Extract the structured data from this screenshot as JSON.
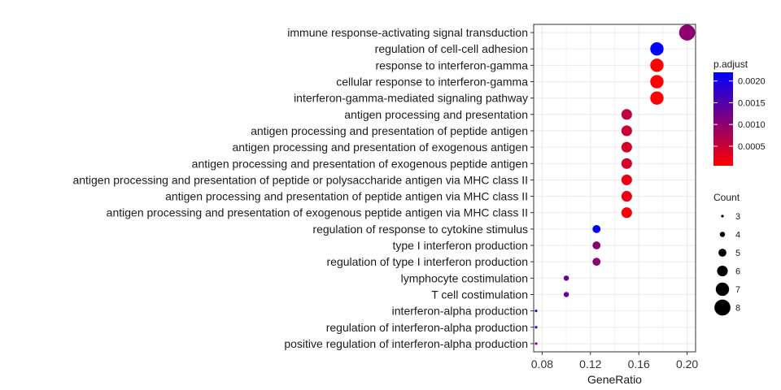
{
  "chart_data": {
    "type": "scatter",
    "xlabel": "GeneRatio",
    "x_ticks": [
      0.08,
      0.12,
      0.16,
      0.2
    ],
    "x_tick_labels": [
      "0.08",
      "0.12",
      "0.16",
      "0.20"
    ],
    "xlim": [
      0.073,
      0.207
    ],
    "grid": true,
    "terms": [
      "immune response-activating signal transduction",
      "regulation of cell-cell adhesion",
      "response to interferon-gamma",
      "cellular response to interferon-gamma",
      "interferon-gamma-mediated signaling pathway",
      "antigen processing and presentation",
      "antigen processing and presentation of peptide antigen",
      "antigen processing and presentation of exogenous antigen",
      "antigen processing and presentation of exogenous peptide antigen",
      "antigen processing and presentation of peptide or polysaccharide antigen via MHC class II",
      "antigen processing and presentation of peptide antigen via MHC class II",
      "antigen processing and presentation of exogenous peptide antigen via MHC class II",
      "regulation of response to cytokine stimulus",
      "type I interferon production",
      "regulation of type I interferon production",
      "lymphocyte costimulation",
      "T cell costimulation",
      "interferon-alpha production",
      "regulation of interferon-alpha production",
      "positive regulation of interferon-alpha production"
    ],
    "gene_ratio": [
      0.2,
      0.175,
      0.175,
      0.175,
      0.175,
      0.15,
      0.15,
      0.15,
      0.15,
      0.15,
      0.15,
      0.15,
      0.125,
      0.125,
      0.125,
      0.1,
      0.1,
      0.075,
      0.075,
      0.075
    ],
    "count": [
      8,
      7,
      7,
      7,
      7,
      6,
      6,
      6,
      6,
      6,
      6,
      6,
      5,
      5,
      5,
      4,
      4,
      3,
      3,
      3
    ],
    "p_adjust": [
      0.001,
      0.0022,
      5e-05,
      5e-05,
      5e-05,
      0.0006,
      0.0005,
      0.0004,
      0.0004,
      0.0002,
      0.0002,
      0.0001,
      0.0022,
      0.001,
      0.001,
      0.0013,
      0.0013,
      0.0016,
      0.0016,
      0.0013
    ],
    "color_legend": {
      "title": "p.adjust",
      "breaks": [
        0.002,
        0.0015,
        0.001,
        0.0005
      ],
      "labels": [
        "0.0020",
        "0.0015",
        "0.0010",
        "0.0005"
      ],
      "range": [
        5e-05,
        0.0022
      ],
      "low_color": "#ff0000",
      "high_color": "#0000ff"
    },
    "size_legend": {
      "title": "Count",
      "values": [
        3,
        4,
        5,
        6,
        7,
        8
      ],
      "labels": [
        "3",
        "4",
        "5",
        "6",
        "7",
        "8"
      ]
    },
    "colors": {
      "panel_border": "#333333",
      "grid": "#ebebeb",
      "point_size_legend": "#000000"
    }
  }
}
